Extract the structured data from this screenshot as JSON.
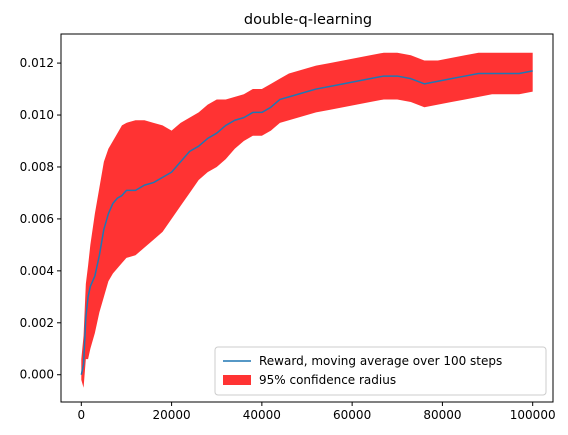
{
  "chart_data": {
    "type": "line",
    "title": "double-q-learning",
    "xlabel": "",
    "ylabel": "",
    "xlim": [
      -4500,
      104500
    ],
    "ylim": [
      -0.00105,
      0.01312
    ],
    "xticks": [
      0,
      20000,
      40000,
      60000,
      80000,
      100000
    ],
    "xtick_labels": [
      "0",
      "20000",
      "40000",
      "60000",
      "80000",
      "100000"
    ],
    "yticks": [
      0.0,
      0.002,
      0.004,
      0.006,
      0.008,
      0.01,
      0.012
    ],
    "ytick_labels": [
      "0.000",
      "0.002",
      "0.004",
      "0.006",
      "0.008",
      "0.010",
      "0.012"
    ],
    "grid": false,
    "legend_position": "lower-right",
    "colors": {
      "line": "#1f77b4",
      "band": "#ff0000",
      "band_opacity": 0.8
    },
    "series": [
      {
        "name": "Reward, moving average over 100 steps",
        "kind": "line",
        "x": [
          0,
          500,
          1000,
          1500,
          2000,
          3000,
          4000,
          5000,
          6000,
          7000,
          8000,
          9000,
          10000,
          12000,
          14000,
          16000,
          18000,
          20000,
          22000,
          24000,
          26000,
          28000,
          30000,
          32000,
          34000,
          36000,
          38000,
          40000,
          42000,
          44000,
          46000,
          48000,
          50000,
          52000,
          55000,
          58000,
          61000,
          64000,
          67000,
          70000,
          73000,
          76000,
          79000,
          82000,
          85000,
          88000,
          91000,
          94000,
          97000,
          100000
        ],
        "y": [
          0.0,
          0.0004,
          0.0022,
          0.003,
          0.0034,
          0.0038,
          0.0046,
          0.0056,
          0.0062,
          0.0066,
          0.0068,
          0.0069,
          0.0071,
          0.0071,
          0.0073,
          0.0074,
          0.0076,
          0.0078,
          0.0082,
          0.0086,
          0.0088,
          0.0091,
          0.0093,
          0.0096,
          0.0098,
          0.0099,
          0.0101,
          0.0101,
          0.0103,
          0.0106,
          0.0107,
          0.0108,
          0.0109,
          0.011,
          0.0111,
          0.0112,
          0.0113,
          0.0114,
          0.0115,
          0.0115,
          0.0114,
          0.0112,
          0.0113,
          0.0114,
          0.0115,
          0.0116,
          0.0116,
          0.0116,
          0.0116,
          0.0117
        ]
      },
      {
        "name": "95% confidence radius",
        "kind": "band",
        "x": [
          0,
          500,
          1000,
          1500,
          2000,
          3000,
          4000,
          5000,
          6000,
          7000,
          8000,
          9000,
          10000,
          12000,
          14000,
          16000,
          18000,
          20000,
          22000,
          24000,
          26000,
          28000,
          30000,
          32000,
          34000,
          36000,
          38000,
          40000,
          42000,
          44000,
          46000,
          48000,
          50000,
          52000,
          55000,
          58000,
          61000,
          64000,
          67000,
          70000,
          73000,
          76000,
          79000,
          82000,
          85000,
          88000,
          91000,
          94000,
          97000,
          100000
        ],
        "upper": [
          0.0006,
          0.0015,
          0.0035,
          0.0042,
          0.005,
          0.0062,
          0.0072,
          0.0082,
          0.0087,
          0.009,
          0.0093,
          0.0096,
          0.0097,
          0.0098,
          0.0098,
          0.0097,
          0.0096,
          0.0094,
          0.0097,
          0.0099,
          0.0101,
          0.0104,
          0.0106,
          0.0106,
          0.0107,
          0.0108,
          0.011,
          0.011,
          0.0112,
          0.0114,
          0.0116,
          0.0117,
          0.0118,
          0.0119,
          0.012,
          0.0121,
          0.0122,
          0.0123,
          0.0124,
          0.0124,
          0.0123,
          0.0121,
          0.0121,
          0.0122,
          0.0123,
          0.0124,
          0.0124,
          0.0124,
          0.0124,
          0.0124
        ],
        "lower": [
          -0.0002,
          -0.0005,
          0.0006,
          0.0006,
          0.001,
          0.0016,
          0.0024,
          0.003,
          0.0036,
          0.0039,
          0.0041,
          0.0043,
          0.0045,
          0.0046,
          0.0049,
          0.0052,
          0.0055,
          0.006,
          0.0065,
          0.007,
          0.0075,
          0.0078,
          0.008,
          0.0083,
          0.0087,
          0.009,
          0.0092,
          0.0092,
          0.0094,
          0.0097,
          0.0098,
          0.0099,
          0.01,
          0.0101,
          0.0102,
          0.0103,
          0.0104,
          0.0105,
          0.0106,
          0.0106,
          0.0105,
          0.0103,
          0.0104,
          0.0105,
          0.0106,
          0.0107,
          0.0108,
          0.0108,
          0.0108,
          0.0109
        ]
      }
    ]
  }
}
